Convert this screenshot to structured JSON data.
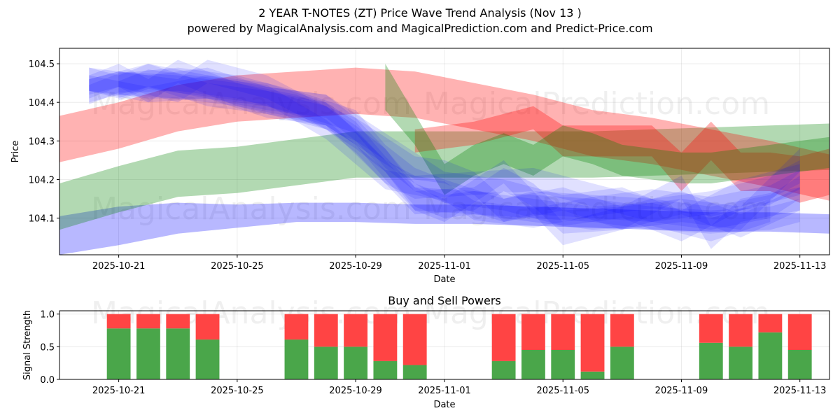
{
  "title": "2 YEAR T-NOTES (ZT) Price Wave Trend Analysis (Nov 13 )",
  "subtitle": "powered by MagicalAnalysis.com and MagicalPrediction.com and Predict-Price.com",
  "watermarks": [
    "MagicalAnalysis.com",
    "MagicalPrediction.com"
  ],
  "chart_data": [
    {
      "type": "area",
      "title": "2 YEAR T-NOTES (ZT) Price Wave Trend Analysis (Nov 13 )",
      "xlabel": "Date",
      "ylabel": "Price",
      "x_range": [
        "2025-10-19",
        "2025-11-14"
      ],
      "ylim": [
        104.005,
        104.54
      ],
      "x_ticks": [
        "2025-10-21",
        "2025-10-25",
        "2025-10-29",
        "2025-11-01",
        "2025-11-05",
        "2025-11-09",
        "2025-11-13"
      ],
      "y_ticks": [
        104.1,
        104.2,
        104.3,
        104.4,
        104.5
      ],
      "grid": true,
      "bands": [
        {
          "color": "#0000ff",
          "opacity": 0.28,
          "x": [
            0,
            2,
            4,
            6,
            8,
            10,
            12,
            14,
            16,
            18,
            20,
            22,
            24,
            26
          ],
          "mid": [
            104.055,
            104.08,
            104.1,
            104.105,
            104.115,
            104.115,
            104.11,
            104.11,
            104.105,
            104.1,
            104.095,
            104.09,
            104.09,
            104.085
          ],
          "half": [
            0.05,
            0.05,
            0.04,
            0.03,
            0.025,
            0.025,
            0.025,
            0.025,
            0.025,
            0.025,
            0.025,
            0.025,
            0.025,
            0.025
          ]
        },
        {
          "color": "#008000",
          "opacity": 0.3,
          "x": [
            0,
            2,
            4,
            6,
            8,
            10,
            12,
            14,
            16,
            18,
            20,
            22,
            24,
            26
          ],
          "mid": [
            104.13,
            104.175,
            104.215,
            104.225,
            104.245,
            104.265,
            104.265,
            104.265,
            104.265,
            104.265,
            104.27,
            104.275,
            104.28,
            104.285
          ],
          "half": [
            0.06,
            0.06,
            0.06,
            0.06,
            0.06,
            0.06,
            0.06,
            0.06,
            0.06,
            0.06,
            0.06,
            0.06,
            0.06,
            0.06
          ]
        },
        {
          "color": "#ff0000",
          "opacity": 0.3,
          "x": [
            0,
            2,
            4,
            6,
            8,
            10,
            12,
            14,
            16,
            18,
            20,
            22,
            24,
            26
          ],
          "mid": [
            104.305,
            104.34,
            104.385,
            104.41,
            104.42,
            104.43,
            104.42,
            104.39,
            104.36,
            104.32,
            104.3,
            104.27,
            104.24,
            104.205
          ],
          "half": [
            0.06,
            0.06,
            0.06,
            0.06,
            0.06,
            0.06,
            0.06,
            0.06,
            0.06,
            0.06,
            0.06,
            0.06,
            0.06,
            0.06
          ]
        },
        {
          "color": "#ff0000",
          "opacity": 0.3,
          "x": [
            12,
            14,
            16,
            17,
            18,
            19,
            20,
            21,
            22,
            23,
            24,
            25,
            26
          ],
          "mid": [
            104.3,
            104.32,
            104.36,
            104.3,
            104.3,
            104.3,
            104.3,
            104.22,
            104.3,
            104.22,
            104.22,
            104.2,
            104.22
          ],
          "half": [
            0.03,
            0.03,
            0.03,
            0.04,
            0.04,
            0.04,
            0.04,
            0.05,
            0.05,
            0.05,
            0.05,
            0.06,
            0.06
          ]
        },
        {
          "color": "#008000",
          "opacity": 0.3,
          "x": [
            11,
            12,
            13,
            14,
            15,
            16,
            17,
            18,
            19,
            20,
            21,
            22,
            23,
            24,
            25,
            26
          ],
          "mid": [
            104.44,
            104.33,
            104.2,
            104.25,
            104.28,
            104.25,
            104.3,
            104.28,
            104.25,
            104.24,
            104.23,
            104.23,
            104.24,
            104.25,
            104.26,
            104.27
          ],
          "half": [
            0.06,
            0.04,
            0.04,
            0.04,
            0.04,
            0.04,
            0.04,
            0.04,
            0.04,
            0.04,
            0.04,
            0.04,
            0.04,
            0.04,
            0.04,
            0.04
          ]
        },
        {
          "color": "#0000ff",
          "opacity": 0.12,
          "x": [
            1,
            3,
            5,
            7,
            9,
            10,
            11,
            12,
            14,
            16,
            18,
            20,
            22,
            24,
            25
          ],
          "mid": [
            104.45,
            104.42,
            104.44,
            104.42,
            104.37,
            104.32,
            104.23,
            104.15,
            104.14,
            104.13,
            104.12,
            104.1,
            104.09,
            104.1,
            104.12
          ],
          "half": [
            0.02,
            0.02,
            0.03,
            0.03,
            0.03,
            0.03,
            0.03,
            0.03,
            0.03,
            0.03,
            0.03,
            0.03,
            0.03,
            0.03,
            0.03
          ]
        },
        {
          "color": "#0000ff",
          "opacity": 0.12,
          "x": [
            1,
            2,
            4,
            6,
            8,
            10,
            11,
            12,
            13,
            15,
            17,
            19,
            21,
            23,
            25
          ],
          "mid": [
            104.42,
            104.45,
            104.46,
            104.44,
            104.4,
            104.35,
            104.26,
            104.2,
            104.17,
            104.12,
            104.15,
            104.1,
            104.14,
            104.08,
            104.15
          ],
          "half": [
            0.025,
            0.025,
            0.03,
            0.03,
            0.03,
            0.03,
            0.03,
            0.03,
            0.03,
            0.03,
            0.03,
            0.03,
            0.03,
            0.03,
            0.03
          ]
        },
        {
          "color": "#0000ff",
          "opacity": 0.12,
          "x": [
            1,
            3,
            5,
            7,
            9,
            11,
            13,
            15,
            17,
            19,
            21,
            23,
            25
          ],
          "mid": [
            104.46,
            104.44,
            104.45,
            104.4,
            104.38,
            104.28,
            104.18,
            104.16,
            104.12,
            104.14,
            104.08,
            104.16,
            104.2
          ],
          "half": [
            0.03,
            0.03,
            0.04,
            0.04,
            0.04,
            0.04,
            0.04,
            0.04,
            0.04,
            0.04,
            0.04,
            0.04,
            0.04
          ]
        },
        {
          "color": "#0000ff",
          "opacity": 0.12,
          "x": [
            1,
            2,
            3,
            4,
            6,
            8,
            9,
            10,
            11,
            12,
            14,
            16,
            18,
            20,
            22,
            24,
            25
          ],
          "mid": [
            104.44,
            104.47,
            104.43,
            104.48,
            104.42,
            104.38,
            104.36,
            104.3,
            104.22,
            104.18,
            104.19,
            104.2,
            104.16,
            104.12,
            104.1,
            104.13,
            104.18
          ],
          "half": [
            0.03,
            0.03,
            0.03,
            0.03,
            0.03,
            0.03,
            0.03,
            0.03,
            0.03,
            0.03,
            0.03,
            0.03,
            0.03,
            0.03,
            0.03,
            0.03,
            0.03
          ]
        },
        {
          "color": "#0000ff",
          "opacity": 0.12,
          "x": [
            1,
            3,
            5,
            7,
            9,
            10,
            11,
            12,
            13,
            14,
            16,
            18,
            20,
            22,
            24
          ],
          "mid": [
            104.43,
            104.47,
            104.44,
            104.41,
            104.39,
            104.33,
            104.25,
            104.16,
            104.13,
            104.14,
            104.12,
            104.1,
            104.11,
            104.07,
            104.12
          ],
          "half": [
            0.03,
            0.03,
            0.03,
            0.03,
            0.03,
            0.03,
            0.03,
            0.03,
            0.03,
            0.03,
            0.03,
            0.03,
            0.03,
            0.03,
            0.03
          ]
        },
        {
          "color": "#0000ff",
          "opacity": 0.12,
          "x": [
            2,
            4,
            6,
            8,
            10,
            12,
            13,
            14,
            15,
            16,
            18,
            20,
            22,
            24,
            25
          ],
          "mid": [
            104.45,
            104.44,
            104.42,
            104.39,
            104.33,
            104.23,
            104.22,
            104.19,
            104.12,
            104.14,
            104.13,
            104.12,
            104.14,
            104.18,
            104.22
          ],
          "half": [
            0.03,
            0.03,
            0.03,
            0.03,
            0.03,
            0.03,
            0.03,
            0.03,
            0.03,
            0.03,
            0.03,
            0.03,
            0.03,
            0.03,
            0.03
          ]
        },
        {
          "color": "#0000ff",
          "opacity": 0.12,
          "x": [
            1,
            2,
            3,
            5,
            7,
            9,
            11,
            12,
            14,
            15,
            16,
            17,
            19,
            21,
            23,
            25
          ],
          "mid": [
            104.46,
            104.44,
            104.47,
            104.42,
            104.4,
            104.37,
            104.22,
            104.14,
            104.15,
            104.2,
            104.16,
            104.09,
            104.1,
            104.12,
            104.1,
            104.25
          ],
          "half": [
            0.03,
            0.03,
            0.03,
            0.03,
            0.03,
            0.03,
            0.03,
            0.03,
            0.03,
            0.03,
            0.03,
            0.03,
            0.03,
            0.03,
            0.03,
            0.03
          ]
        },
        {
          "color": "#0000ff",
          "opacity": 0.12,
          "x": [
            1,
            2,
            4,
            5,
            7,
            9,
            10,
            11,
            12,
            13,
            15,
            16,
            17,
            19,
            21,
            22,
            23,
            25
          ],
          "mid": [
            104.44,
            104.46,
            104.43,
            104.48,
            104.44,
            104.36,
            104.31,
            104.25,
            104.15,
            104.12,
            104.22,
            104.14,
            104.06,
            104.1,
            104.18,
            104.05,
            104.12,
            104.15
          ],
          "half": [
            0.02,
            0.02,
            0.03,
            0.03,
            0.03,
            0.03,
            0.03,
            0.03,
            0.03,
            0.03,
            0.03,
            0.03,
            0.03,
            0.03,
            0.03,
            0.03,
            0.03,
            0.03
          ]
        },
        {
          "color": "#0000ff",
          "opacity": 0.12,
          "x": [
            2,
            3,
            5,
            7,
            9,
            11,
            13,
            14,
            16,
            18,
            20,
            22,
            24,
            25
          ],
          "mid": [
            104.43,
            104.46,
            104.44,
            104.42,
            104.33,
            104.2,
            104.17,
            104.12,
            104.1,
            104.13,
            104.15,
            104.13,
            104.16,
            104.2
          ],
          "half": [
            0.025,
            0.025,
            0.025,
            0.025,
            0.025,
            0.025,
            0.025,
            0.025,
            0.025,
            0.025,
            0.025,
            0.025,
            0.025,
            0.025
          ]
        }
      ]
    },
    {
      "type": "bar",
      "title": "Buy and Sell Powers",
      "xlabel": "Date",
      "ylabel": "Signal Strength",
      "ylim": [
        0,
        1.05
      ],
      "y_ticks": [
        "0.0",
        "0.5",
        "1.0"
      ],
      "x_ticks": [
        "2025-10-21",
        "2025-10-25",
        "2025-10-29",
        "2025-11-01",
        "2025-11-05",
        "2025-11-09",
        "2025-11-13"
      ],
      "dates": [
        "2025-10-21",
        "2025-10-22",
        "2025-10-23",
        "2025-10-24",
        "2025-10-27",
        "2025-10-28",
        "2025-10-29",
        "2025-10-30",
        "2025-10-31",
        "2025-11-03",
        "2025-11-04",
        "2025-11-05",
        "2025-11-06",
        "2025-11-07",
        "2025-11-10",
        "2025-11-11",
        "2025-11-12",
        "2025-11-13"
      ],
      "series": [
        {
          "name": "Buy",
          "color": "#4aa64a",
          "values": [
            0.78,
            0.78,
            0.78,
            0.61,
            0.61,
            0.5,
            0.5,
            0.28,
            0.22,
            0.28,
            0.45,
            0.45,
            0.12,
            0.5,
            0.56,
            0.5,
            0.72,
            0.45
          ]
        },
        {
          "name": "Sell",
          "color": "#ff4444",
          "values": [
            0.22,
            0.22,
            0.22,
            0.39,
            0.39,
            0.5,
            0.5,
            0.72,
            0.78,
            0.72,
            0.55,
            0.55,
            0.88,
            0.5,
            0.44,
            0.5,
            0.28,
            0.55
          ]
        }
      ]
    }
  ]
}
